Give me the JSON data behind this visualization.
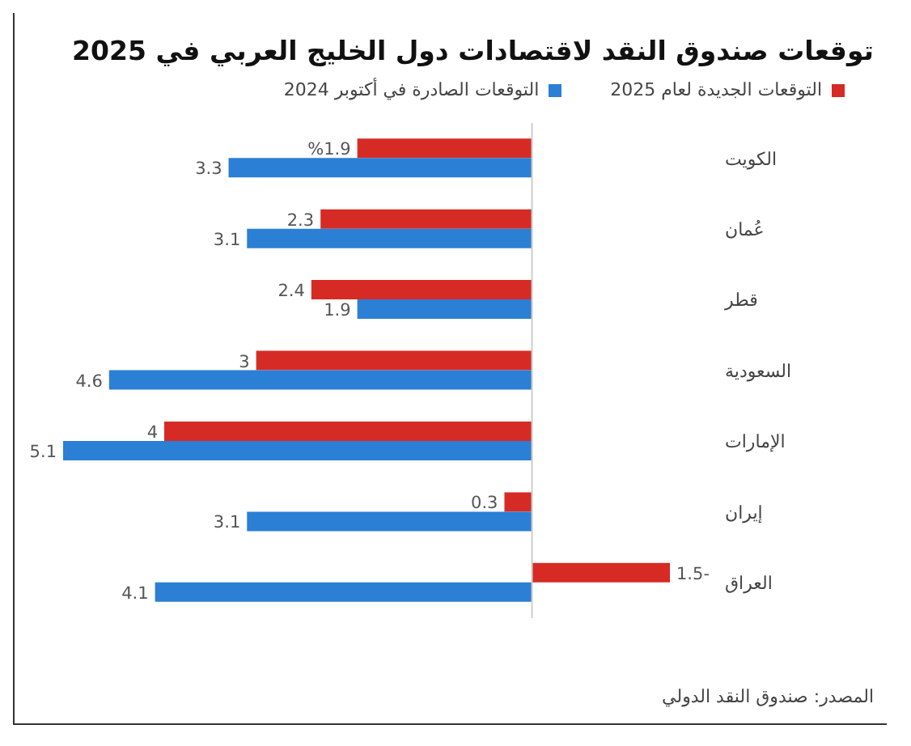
{
  "chart_data": {
    "type": "bar",
    "orientation": "horizontal",
    "title": "توقعات صندوق النقد لاقتصادات دول الخليج العربي في 2025",
    "categories": [
      "الكويت",
      "عُمان",
      "قطر",
      "السعودية",
      "الإمارات",
      "إيران",
      "العراق"
    ],
    "series": [
      {
        "name": "التوقعات الجديدة لعام 2025",
        "color": "#d62b25",
        "values": [
          1.9,
          2.3,
          2.4,
          3,
          4,
          0.3,
          -1.5
        ],
        "value_labels": [
          "%1.9",
          "2.3",
          "2.4",
          "3",
          "4",
          "0.3",
          "-1.5"
        ]
      },
      {
        "name": "التوقعات الصادرة في أكتوبر 2024",
        "color": "#2b7fd4",
        "values": [
          3.3,
          3.1,
          1.9,
          4.6,
          5.1,
          3.1,
          4.1
        ],
        "value_labels": [
          "3.3",
          "3.1",
          "1.9",
          "4.6",
          "5.1",
          "3.1",
          "4.1"
        ]
      }
    ],
    "legend": "top right",
    "grid": false,
    "annotations": [
      "المصدر: صندوق النقد الدولي"
    ]
  }
}
